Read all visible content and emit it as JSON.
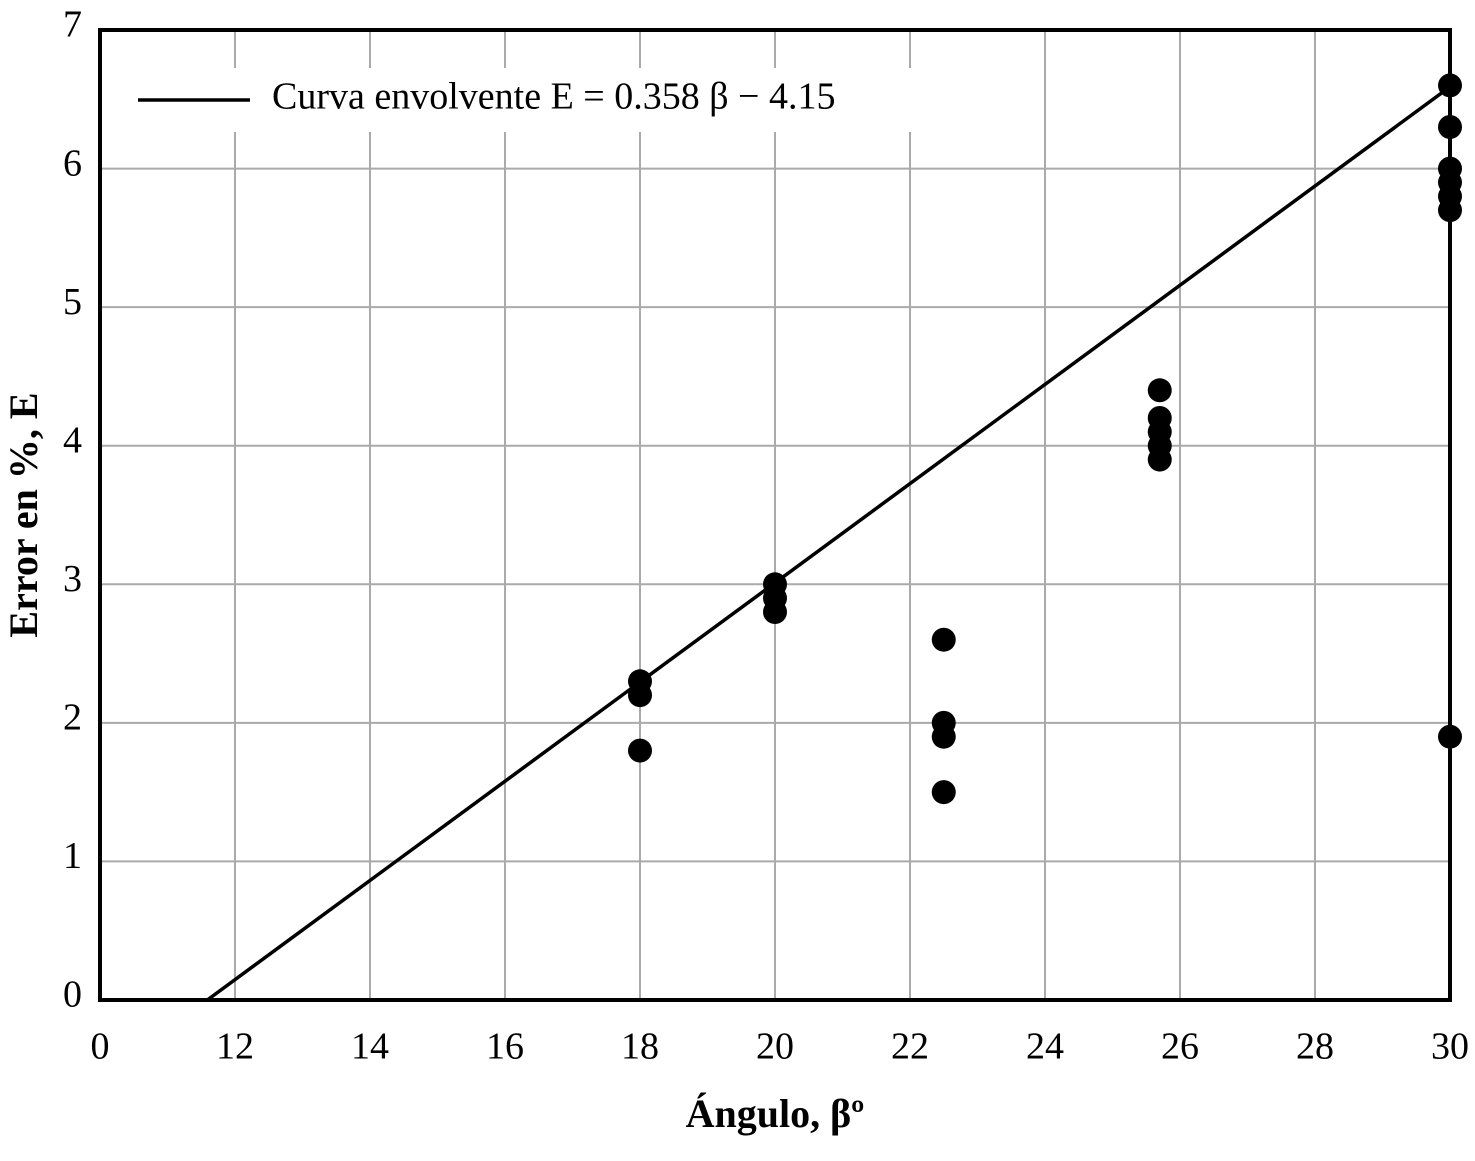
{
  "chart_data": {
    "type": "scatter",
    "x_label": "Ángulo, βº",
    "y_label": "Error en %, E",
    "xlim": [
      10,
      30
    ],
    "ylim": [
      0,
      7
    ],
    "xticks": [
      {
        "value": 10,
        "label": "0"
      },
      12,
      14,
      16,
      18,
      20,
      22,
      24,
      26,
      28,
      30
    ],
    "yticks": [
      0,
      1,
      2,
      3,
      4,
      5,
      6,
      7
    ],
    "grid": true,
    "legend": "upper left",
    "series": [
      {
        "name": "Curva envolvente E = 0.358 β − 4.15",
        "type": "line",
        "color": "#000000",
        "x": [
          11.59,
          30
        ],
        "values": [
          0,
          6.59
        ]
      },
      {
        "type": "scatter",
        "color": "#000000",
        "x": [
          18,
          18,
          18,
          20,
          20,
          20,
          22.5,
          22.5,
          22.5,
          22.5,
          25.7,
          25.7,
          25.7,
          25.7,
          25.7,
          30,
          30,
          30,
          30,
          30,
          30,
          30
        ],
        "values": [
          2.3,
          2.2,
          1.8,
          3.0,
          2.9,
          2.8,
          2.6,
          2.0,
          1.9,
          1.5,
          4.4,
          4.2,
          4.1,
          4.0,
          3.9,
          6.6,
          6.3,
          6.0,
          5.9,
          5.8,
          5.7,
          1.9
        ]
      }
    ]
  }
}
